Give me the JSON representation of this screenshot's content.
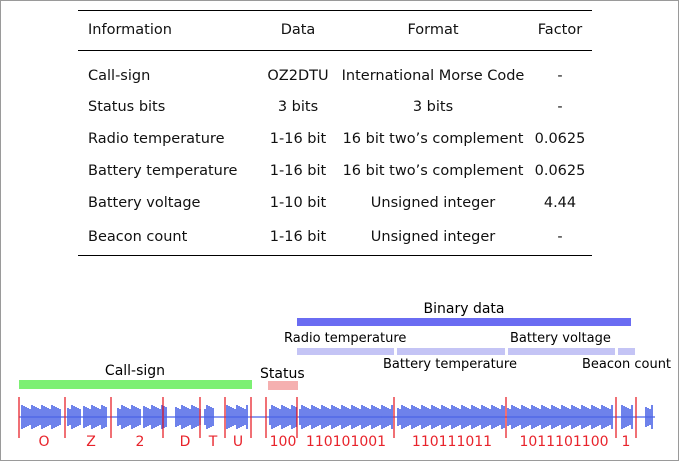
{
  "table": {
    "headers": [
      "Information",
      "Data",
      "Format",
      "Factor"
    ],
    "rows": [
      [
        "Call-sign",
        "OZ2DTU",
        "International Morse Code",
        "-"
      ],
      [
        "Status bits",
        "3 bits",
        "3 bits",
        "-"
      ],
      [
        "Radio temperature",
        "1-16 bit",
        "16 bit two’s complement",
        "0.0625"
      ],
      [
        "Battery temperature",
        "1-16 bit",
        "16 bit two’s complement",
        "0.0625"
      ],
      [
        "Battery voltage",
        "1-10 bit",
        "Unsigned integer",
        "4.44"
      ],
      [
        "Beacon count",
        "1-16 bit",
        "Unsigned integer",
        "-"
      ]
    ]
  },
  "diagram": {
    "binary_label": "Binary data",
    "callsign_label": "Call-sign",
    "status_label": "Status",
    "radio_temp_label": "Radio temperature",
    "battery_temp_label": "Battery temperature",
    "battery_volt_label": "Battery voltage",
    "beacon_count_label": "Beacon count",
    "segments": [
      "O",
      "Z",
      "2",
      "D",
      "T",
      "U",
      "100",
      "110101001",
      "110111011",
      "1011101100",
      "1"
    ],
    "colors": {
      "binary": "#6a6cf2",
      "callsign": "#7cf073",
      "status": "#f5b0b0",
      "fields": "#c4c4f5",
      "separator": "#e8232b",
      "segment_text": "#e8232b",
      "waveform": "#4a63e6"
    }
  }
}
